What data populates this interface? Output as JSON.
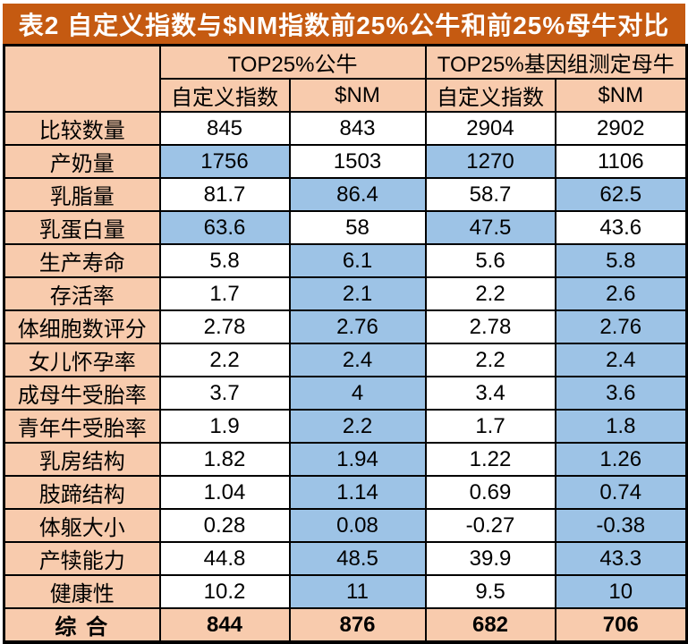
{
  "title": "表2  自定义指数与$NM指数前25%公牛和前25%母牛对比",
  "colors": {
    "title_bar_bg": "#C55A11",
    "title_text": "#FFFFFF",
    "header_fill": "#F8CBAD",
    "highlight_fill": "#9DC3E6",
    "border": "#000000"
  },
  "table": {
    "group_headers": [
      {
        "label": "TOP25%公牛",
        "span": 2
      },
      {
        "label": "TOP25%基因组测定母牛",
        "span": 2
      }
    ],
    "sub_headers": [
      "自定义指数",
      "$NM",
      "自定义指数",
      "$NM"
    ],
    "rows": [
      {
        "label": "比较数量",
        "values": [
          "845",
          "843",
          "2904",
          "2902"
        ],
        "highlight": [
          0,
          0,
          0,
          0
        ]
      },
      {
        "label": "产奶量",
        "values": [
          "1756",
          "1503",
          "1270",
          "1106"
        ],
        "highlight": [
          1,
          0,
          1,
          0
        ]
      },
      {
        "label": "乳脂量",
        "values": [
          "81.7",
          "86.4",
          "58.7",
          "62.5"
        ],
        "highlight": [
          0,
          1,
          0,
          1
        ]
      },
      {
        "label": "乳蛋白量",
        "values": [
          "63.6",
          "58",
          "47.5",
          "43.6"
        ],
        "highlight": [
          1,
          0,
          1,
          0
        ]
      },
      {
        "label": "生产寿命",
        "values": [
          "5.8",
          "6.1",
          "5.6",
          "5.8"
        ],
        "highlight": [
          0,
          1,
          0,
          1
        ]
      },
      {
        "label": "存活率",
        "values": [
          "1.7",
          "2.1",
          "2.2",
          "2.6"
        ],
        "highlight": [
          0,
          1,
          0,
          1
        ]
      },
      {
        "label": "体细胞数评分",
        "values": [
          "2.78",
          "2.76",
          "2.78",
          "2.76"
        ],
        "highlight": [
          0,
          1,
          0,
          1
        ]
      },
      {
        "label": "女儿怀孕率",
        "values": [
          "2.2",
          "2.4",
          "2.2",
          "2.4"
        ],
        "highlight": [
          0,
          1,
          0,
          1
        ]
      },
      {
        "label": "成母牛受胎率",
        "values": [
          "3.7",
          "4",
          "3.4",
          "3.6"
        ],
        "highlight": [
          0,
          1,
          0,
          1
        ]
      },
      {
        "label": "青年牛受胎率",
        "values": [
          "1.9",
          "2.2",
          "1.7",
          "1.8"
        ],
        "highlight": [
          0,
          1,
          0,
          1
        ]
      },
      {
        "label": "乳房结构",
        "values": [
          "1.82",
          "1.94",
          "1.22",
          "1.26"
        ],
        "highlight": [
          0,
          1,
          0,
          1
        ]
      },
      {
        "label": "肢蹄结构",
        "values": [
          "1.04",
          "1.14",
          "0.69",
          "0.74"
        ],
        "highlight": [
          0,
          1,
          0,
          1
        ]
      },
      {
        "label": "体躯大小",
        "values": [
          "0.28",
          "0.08",
          "-0.27",
          "-0.38"
        ],
        "highlight": [
          0,
          1,
          0,
          1
        ]
      },
      {
        "label": "产犊能力",
        "values": [
          "44.8",
          "48.5",
          "39.9",
          "43.3"
        ],
        "highlight": [
          0,
          1,
          0,
          1
        ]
      },
      {
        "label": "健康性",
        "values": [
          "10.2",
          "11",
          "9.5",
          "10"
        ],
        "highlight": [
          0,
          1,
          0,
          1
        ]
      }
    ],
    "footer": {
      "label": "综  合",
      "values": [
        "844",
        "876",
        "682",
        "706"
      ]
    }
  }
}
